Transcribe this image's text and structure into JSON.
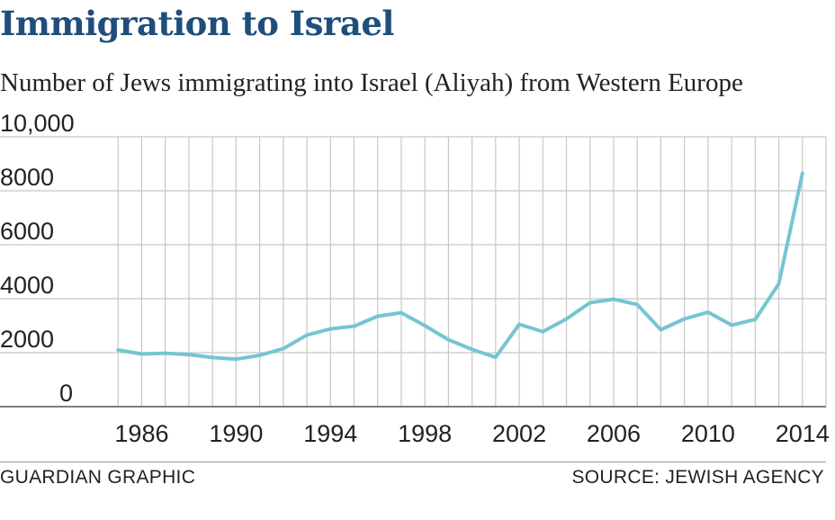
{
  "header": {
    "title": "Immigration to Israel",
    "subtitle": "Number of Jews immigrating into Israel (Aliyah) from Western Europe"
  },
  "footer": {
    "credit": "GUARDIAN GRAPHIC",
    "source": "SOURCE: JEWISH AGENCY"
  },
  "colors": {
    "line": "#77c4d2",
    "grid": "#c8c8c8",
    "axis": "#555555",
    "title": "#1f4e7c"
  },
  "chart_data": {
    "type": "line",
    "x": [
      1985,
      1986,
      1987,
      1988,
      1989,
      1990,
      1991,
      1992,
      1993,
      1994,
      1995,
      1996,
      1997,
      1998,
      1999,
      2000,
      2001,
      2002,
      2003,
      2004,
      2005,
      2006,
      2007,
      2008,
      2009,
      2010,
      2011,
      2012,
      2013,
      2014
    ],
    "series": [
      {
        "values": [
          2100,
          1950,
          1980,
          1930,
          1820,
          1760,
          1900,
          2150,
          2650,
          2880,
          2980,
          3350,
          3480,
          3000,
          2480,
          2120,
          1830,
          3050,
          2780,
          3250,
          3850,
          3980,
          3780,
          2850,
          3250,
          3500,
          3020,
          3230,
          4550,
          8650
        ]
      }
    ],
    "xticks": [
      "1986",
      "1990",
      "1994",
      "1998",
      "2002",
      "2006",
      "2010",
      "2014"
    ],
    "xtick_values": [
      1986,
      1990,
      1994,
      1998,
      2002,
      2006,
      2010,
      2014
    ],
    "yticks": [
      "0",
      "2000",
      "4000",
      "6000",
      "8000",
      "10,000"
    ],
    "ytick_values": [
      0,
      2000,
      4000,
      6000,
      8000,
      10000
    ],
    "ylim": [
      0,
      10000
    ],
    "xlim": [
      1984,
      2015
    ],
    "grid": true,
    "xlabel": "",
    "ylabel": ""
  }
}
